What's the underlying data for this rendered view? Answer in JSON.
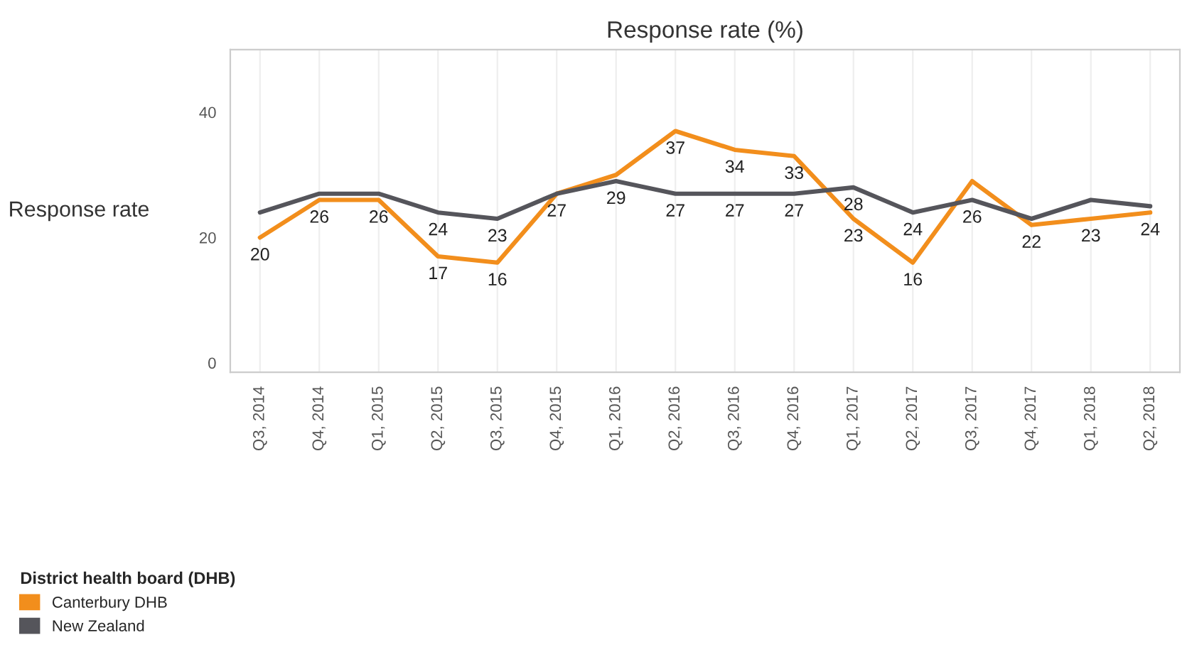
{
  "chart_data": {
    "type": "line",
    "title": "Response rate (%)",
    "ylabel": "Response rate",
    "legend_title": "District health board (DHB)",
    "categories": [
      "Q3, 2014",
      "Q4, 2014",
      "Q1, 2015",
      "Q2, 2015",
      "Q3, 2015",
      "Q4, 2015",
      "Q1, 2016",
      "Q2, 2016",
      "Q3, 2016",
      "Q4, 2016",
      "Q1, 2017",
      "Q2, 2017",
      "Q3, 2017",
      "Q4, 2017",
      "Q1, 2018",
      "Q2, 2018"
    ],
    "series": [
      {
        "name": "Canterbury DHB",
        "color": "#f28e1c",
        "values": [
          20,
          26,
          26,
          17,
          16,
          27,
          30,
          37,
          34,
          33,
          23,
          16,
          29,
          22,
          23,
          24
        ],
        "value_labels": [
          "20",
          "26",
          "26",
          "17",
          "16",
          "27",
          null,
          "37",
          "34",
          "33",
          "23",
          "16",
          null,
          "22",
          "23",
          "24"
        ]
      },
      {
        "name": "New Zealand",
        "color": "#55555b",
        "values": [
          24,
          27,
          27,
          24,
          23,
          27,
          29,
          27,
          27,
          27,
          28,
          24,
          26,
          23,
          26,
          25
        ],
        "value_labels": [
          null,
          null,
          null,
          "24",
          "23",
          null,
          "29",
          "27",
          "27",
          "27",
          "28",
          "24",
          "26",
          null,
          null,
          null
        ]
      }
    ],
    "ylim": [
      -1.5,
      50
    ],
    "yticks": [
      0,
      20,
      40
    ],
    "grid": "x",
    "legend": "bottom left",
    "marker": "none",
    "line_style": "solid"
  }
}
